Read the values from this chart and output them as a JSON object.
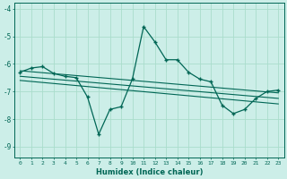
{
  "xlabel": "Humidex (Indice chaleur)",
  "background_color": "#cceee8",
  "grid_color": "#aaddcc",
  "line_color": "#006655",
  "xlim": [
    -0.5,
    23.5
  ],
  "ylim": [
    -9.4,
    -3.8
  ],
  "yticks": [
    -9,
    -8,
    -7,
    -6,
    -5,
    -4
  ],
  "xticks": [
    0,
    1,
    2,
    3,
    4,
    5,
    6,
    7,
    8,
    9,
    10,
    11,
    12,
    13,
    14,
    15,
    16,
    17,
    18,
    19,
    20,
    21,
    22,
    23
  ],
  "main_x": [
    0,
    1,
    2,
    3,
    4,
    5,
    6,
    7,
    8,
    9,
    10,
    11,
    12,
    13,
    14,
    15,
    16,
    17,
    18,
    19,
    20,
    21,
    22,
    23
  ],
  "main_y": [
    -6.3,
    -6.15,
    -6.1,
    -6.35,
    -6.45,
    -6.5,
    -7.2,
    -8.55,
    -7.65,
    -7.55,
    -6.55,
    -4.65,
    -5.2,
    -5.85,
    -5.85,
    -6.3,
    -6.55,
    -6.65,
    -7.5,
    -7.8,
    -7.65,
    -7.25,
    -7.0,
    -6.95
  ],
  "trend1_x": [
    0,
    23
  ],
  "trend1_y": [
    -6.25,
    -7.05
  ],
  "trend2_x": [
    0,
    23
  ],
  "trend2_y": [
    -6.45,
    -7.25
  ],
  "trend3_x": [
    0,
    23
  ],
  "trend3_y": [
    -6.6,
    -7.45
  ]
}
